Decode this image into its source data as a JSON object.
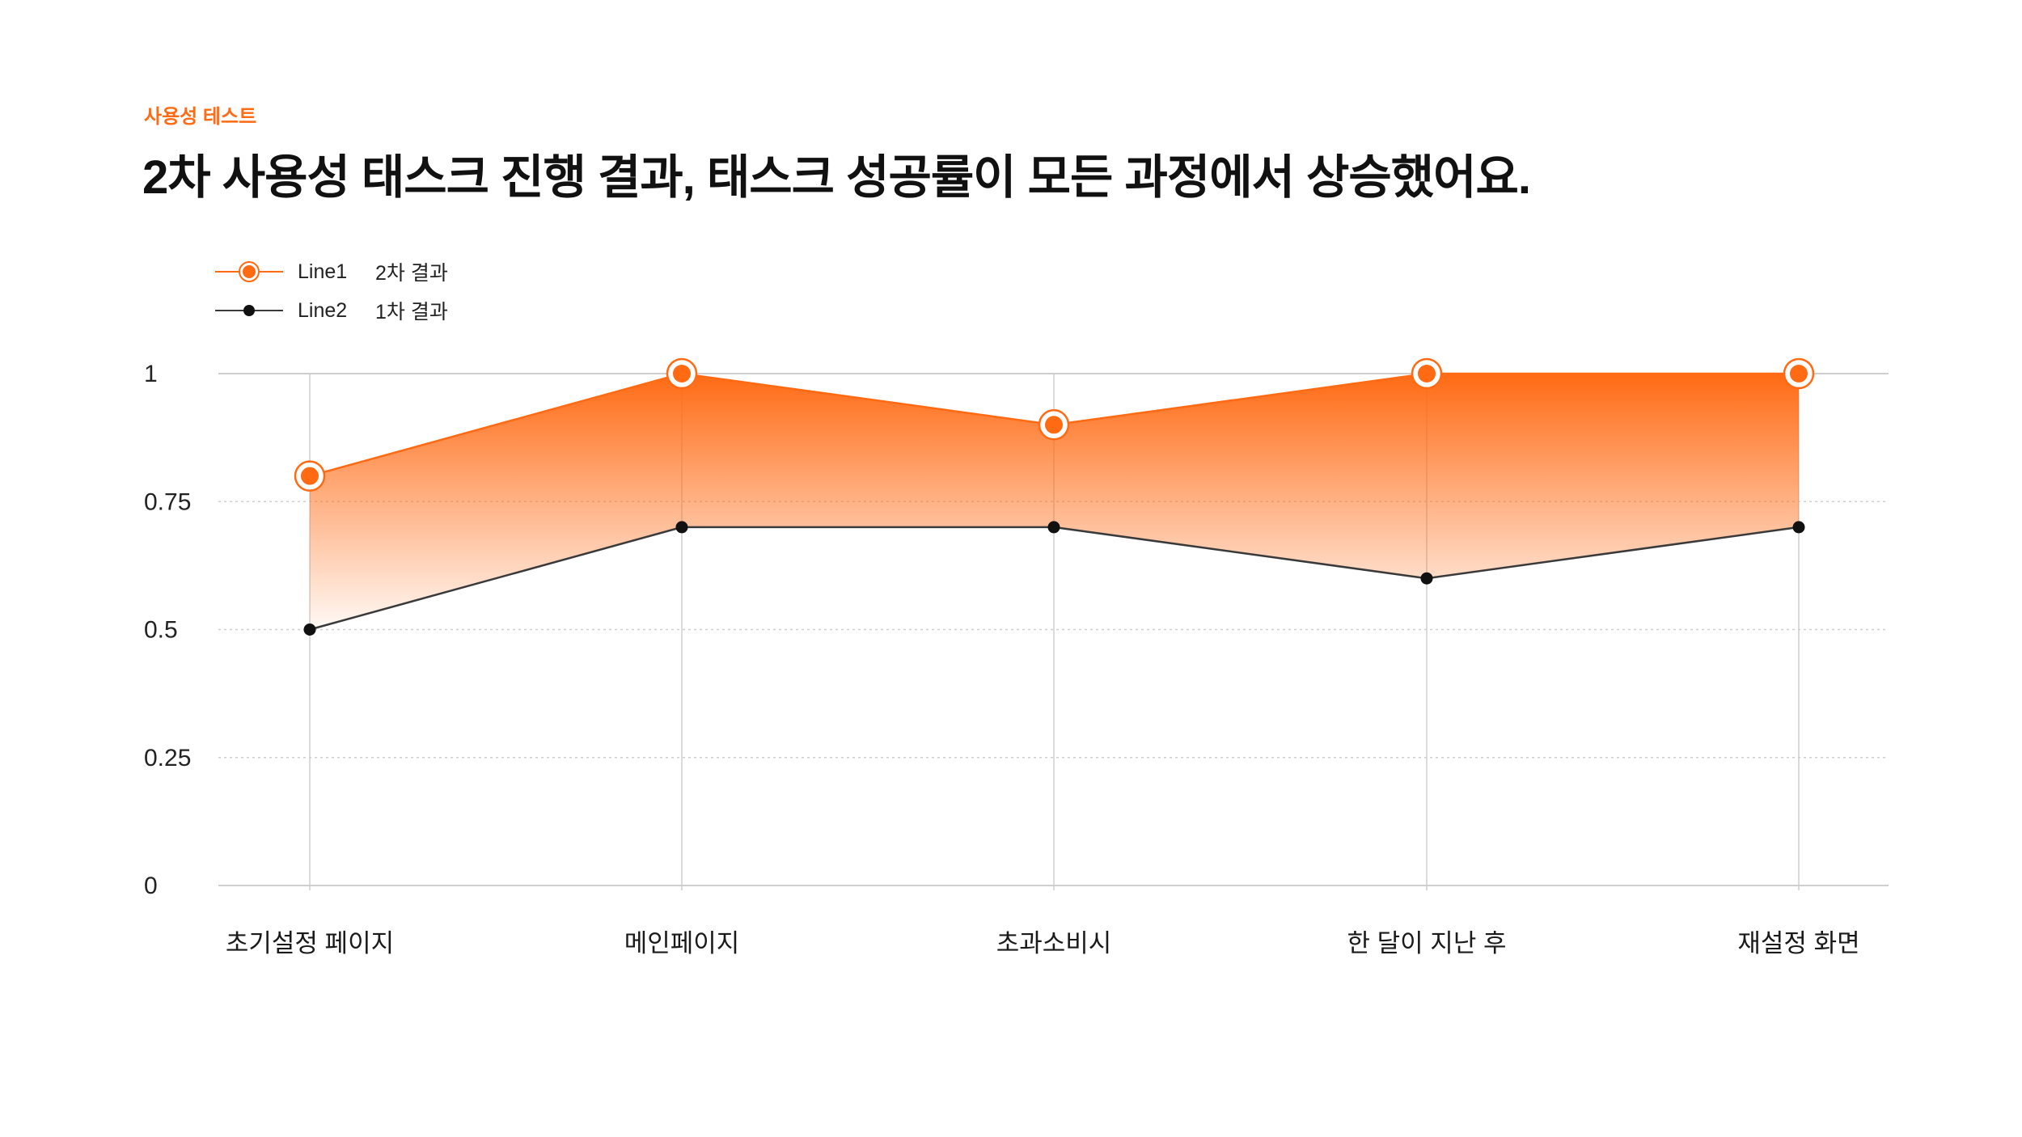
{
  "header": {
    "eyebrow": "사용성 테스트",
    "title": "2차 사용성 태스크 진행 결과, 태스크 성공률이 모든 과정에서 상승했어요."
  },
  "legend": [
    {
      "name": "Line1",
      "label": "2차 결과",
      "color": "#ff6a13"
    },
    {
      "name": "Line2",
      "label": "1차 결과",
      "color": "#111111"
    }
  ],
  "colors": {
    "accent": "#ff6a13",
    "line2": "#3a3a3a",
    "grid": "#cfcfcf",
    "text": "#222222"
  },
  "chart_data": {
    "type": "area",
    "categories": [
      "초기설정 페이지",
      "메인페이지",
      "초과소비시",
      "한 달이 지난 후",
      "재설정 화면"
    ],
    "series": [
      {
        "name": "Line1",
        "label": "2차 결과",
        "values": [
          0.8,
          1,
          0.9,
          1,
          1
        ]
      },
      {
        "name": "Line2",
        "label": "1차 결과",
        "values": [
          0.5,
          0.7,
          0.7,
          0.6,
          0.7
        ]
      }
    ],
    "yticks": [
      "0",
      "0.25",
      "0.5",
      "0.75",
      "1"
    ],
    "ytick_values": [
      0,
      0.25,
      0.5,
      0.75,
      1
    ],
    "ylim": [
      0,
      1
    ],
    "xlabel": "",
    "ylabel": "",
    "grid": true
  }
}
